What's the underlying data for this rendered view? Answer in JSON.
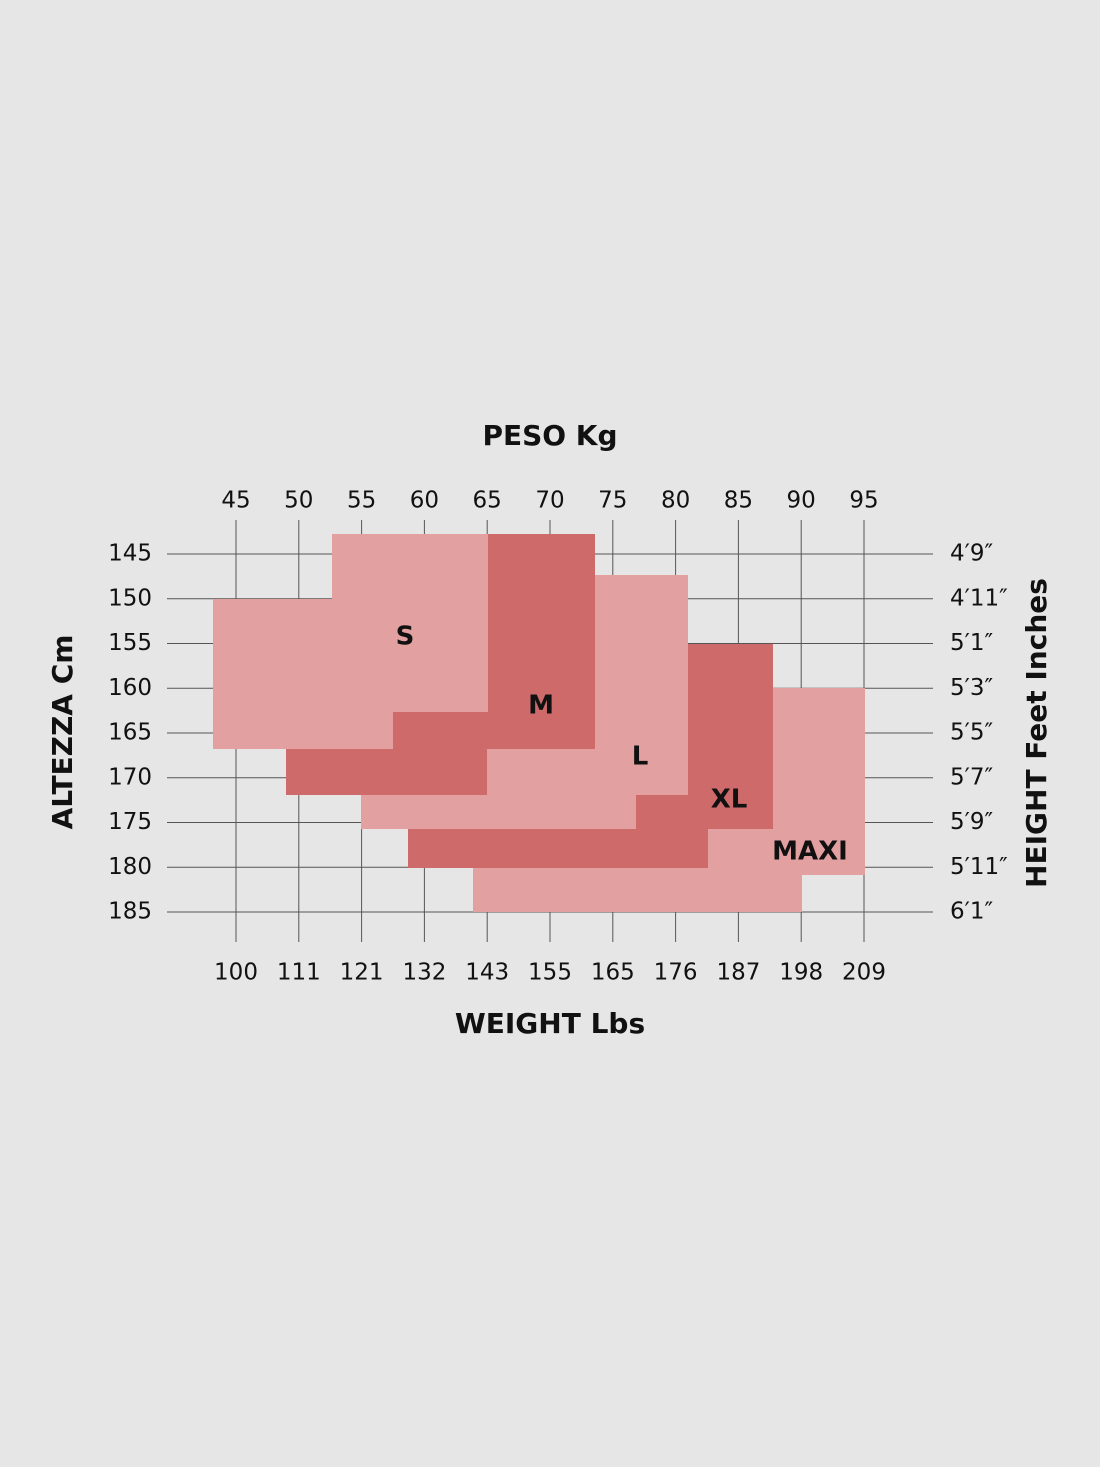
{
  "top_axis": {
    "title": "PESO Kg",
    "ticks": [
      45,
      50,
      55,
      60,
      65,
      70,
      75,
      80,
      85,
      90,
      95
    ]
  },
  "bottom_axis": {
    "title": "WEIGHT Lbs",
    "ticks": [
      100,
      111,
      121,
      132,
      143,
      155,
      165,
      176,
      187,
      198,
      209
    ]
  },
  "left_axis": {
    "title": "ALTEZZA Cm",
    "ticks": [
      145,
      150,
      155,
      160,
      165,
      170,
      175,
      180,
      185
    ]
  },
  "right_axis": {
    "title": "HEIGHT Feet Inches",
    "ticks": [
      "4′9″",
      "4′11″",
      "5′1″",
      "5′3″",
      "5′5″",
      "5′7″",
      "5′9″",
      "5′11″",
      "6′1″"
    ]
  },
  "sizes": [
    "S",
    "M",
    "L",
    "XL",
    "MAXI"
  ]
}
